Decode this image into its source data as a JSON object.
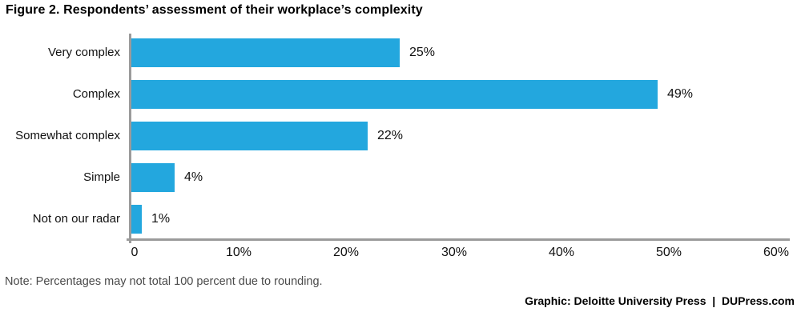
{
  "title": "Figure 2. Respondents’ assessment of their workplace’s complexity",
  "note": "Note: Percentages may not total 100 percent due to rounding.",
  "credit": "Graphic: Deloitte University Press  |  DUPress.com",
  "colors": {
    "bar": "#23A7DE",
    "axis": "#9B9B9B",
    "note_text": "#4A4A4A",
    "text": "#111111"
  },
  "chart_data": {
    "type": "bar",
    "orientation": "horizontal",
    "title": "Figure 2. Respondents’ assessment of their workplace’s complexity",
    "categories": [
      "Very complex",
      "Complex",
      "Somewhat complex",
      "Simple",
      "Not on our radar"
    ],
    "values": [
      25,
      49,
      22,
      4,
      1
    ],
    "value_labels": [
      "25%",
      "49%",
      "22%",
      "4%",
      "1%"
    ],
    "xlabel": "",
    "ylabel": "",
    "xlim": [
      0,
      60
    ],
    "xticks": [
      {
        "value": 0,
        "label": "0"
      },
      {
        "value": 10,
        "label": "10%"
      },
      {
        "value": 20,
        "label": "20%"
      },
      {
        "value": 30,
        "label": "30%"
      },
      {
        "value": 40,
        "label": "40%"
      },
      {
        "value": 50,
        "label": "50%"
      },
      {
        "value": 60,
        "label": "60%"
      }
    ],
    "grid": false,
    "legend": false
  }
}
